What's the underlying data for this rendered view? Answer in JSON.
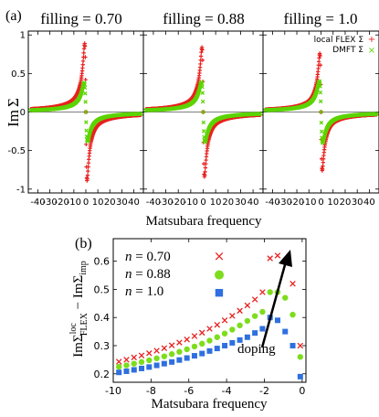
{
  "top": {
    "panel_label": "(a)",
    "titles": [
      "filling = 0.70",
      "filling = 0.88",
      "filling = 1.0"
    ],
    "ylabel_main": "Im",
    "ylabel_sym": "Σ",
    "xlabel": "Matsubara frequency",
    "xticks": [
      "-40",
      "-30",
      "-20",
      "-10",
      "0",
      "10",
      "20",
      "30",
      "40"
    ],
    "yticks": [
      "1",
      "0.5",
      "0",
      "-0.5",
      "-1"
    ],
    "legend": [
      {
        "label": "local FLEX  Σ",
        "marker": "+",
        "color": "#e8211f"
      },
      {
        "label": "DMFT  Σ",
        "marker": "×",
        "color": "#5cd400"
      }
    ]
  },
  "bottom": {
    "panel_label": "(b)",
    "xlabel": "Matsubara frequency",
    "ylabel": {
      "a": "ImΣ",
      "a_sup": "loc",
      "a_sub": "FLEX",
      "mid": " − ImΣ",
      "b_sub": "imp"
    },
    "xticks": [
      "-10",
      "-8",
      "-6",
      "-4",
      "-2",
      "0"
    ],
    "yticks": [
      "0.2",
      "0.3",
      "0.4",
      "0.5",
      "0.6"
    ],
    "legend": [
      {
        "var": "n",
        "eq": " = 0.70",
        "marker": "×",
        "color": "#e8211f"
      },
      {
        "var": "n",
        "eq": " = 0.88",
        "marker": "●",
        "color": "#7ddd1c"
      },
      {
        "var": "n",
        "eq": " = 1.0",
        "marker": "■",
        "color": "#2f6fe0"
      }
    ],
    "annotation": "doping"
  },
  "chart_data": [
    {
      "type": "scatter",
      "title": "filling = 0.70",
      "xlabel": "Matsubara frequency",
      "ylabel": "Im Σ",
      "xlim": [
        -48,
        48
      ],
      "ylim": [
        -1.05,
        1.05
      ],
      "series": [
        {
          "name": "local FLEX Σ",
          "color": "#e8211f",
          "amp": 0.89,
          "peak": 1.0
        },
        {
          "name": "DMFT Σ",
          "color": "#5cd400",
          "amp": 0.38,
          "peak": 1.4
        }
      ]
    },
    {
      "type": "scatter",
      "title": "filling = 0.88",
      "xlabel": "Matsubara frequency",
      "ylabel": "Im Σ",
      "xlim": [
        -48,
        48
      ],
      "ylim": [
        -1.05,
        1.05
      ],
      "series": [
        {
          "name": "local FLEX Σ",
          "color": "#e8211f",
          "amp": 0.84,
          "peak": 1.0
        },
        {
          "name": "DMFT Σ",
          "color": "#5cd400",
          "amp": 0.39,
          "peak": 1.4
        }
      ]
    },
    {
      "type": "scatter",
      "title": "filling = 1.0",
      "xlabel": "Matsubara frequency",
      "ylabel": "Im Σ",
      "xlim": [
        -48,
        48
      ],
      "ylim": [
        -1.05,
        1.05
      ],
      "series": [
        {
          "name": "local FLEX Σ",
          "color": "#e8211f",
          "amp": 0.76,
          "peak": 1.0
        },
        {
          "name": "DMFT Σ",
          "color": "#5cd400",
          "amp": 0.4,
          "peak": 1.4
        }
      ]
    },
    {
      "type": "scatter",
      "xlabel": "Matsubara frequency",
      "ylabel": "ImΣ_FLEX^loc − ImΣ_imp",
      "xlim": [
        -10,
        0.2
      ],
      "ylim": [
        0.17,
        0.68
      ],
      "series": [
        {
          "name": "n = 0.70",
          "color": "#e8211f",
          "x": [
            -9.7,
            -9.3,
            -8.9,
            -8.5,
            -8.1,
            -7.7,
            -7.3,
            -6.9,
            -6.5,
            -6.1,
            -5.7,
            -5.3,
            -4.9,
            -4.5,
            -4.1,
            -3.7,
            -3.3,
            -2.9,
            -2.5,
            -2.1,
            -1.7,
            -1.3,
            -0.9,
            -0.5,
            -0.1
          ],
          "y": [
            0.243,
            0.25,
            0.258,
            0.265,
            0.273,
            0.282,
            0.291,
            0.301,
            0.311,
            0.322,
            0.334,
            0.346,
            0.36,
            0.374,
            0.39,
            0.406,
            0.424,
            0.443,
            0.464,
            0.49,
            0.61,
            0.62,
            0.6,
            0.52,
            0.3
          ]
        },
        {
          "name": "n = 0.88",
          "color": "#7ddd1c",
          "x": [
            -9.7,
            -9.3,
            -8.9,
            -8.5,
            -8.1,
            -7.7,
            -7.3,
            -6.9,
            -6.5,
            -6.1,
            -5.7,
            -5.3,
            -4.9,
            -4.5,
            -4.1,
            -3.7,
            -3.3,
            -2.9,
            -2.5,
            -2.1,
            -1.7,
            -1.3,
            -0.9,
            -0.5,
            -0.1
          ],
          "y": [
            0.225,
            0.23,
            0.236,
            0.242,
            0.248,
            0.255,
            0.262,
            0.27,
            0.278,
            0.287,
            0.297,
            0.307,
            0.318,
            0.33,
            0.343,
            0.357,
            0.372,
            0.388,
            0.405,
            0.42,
            0.49,
            0.49,
            0.47,
            0.41,
            0.26
          ]
        },
        {
          "name": "n = 1.0",
          "color": "#2f6fe0",
          "x": [
            -9.7,
            -9.3,
            -8.9,
            -8.5,
            -8.1,
            -7.7,
            -7.3,
            -6.9,
            -6.5,
            -6.1,
            -5.7,
            -5.3,
            -4.9,
            -4.5,
            -4.1,
            -3.7,
            -3.3,
            -2.9,
            -2.5,
            -2.1,
            -1.7,
            -1.3,
            -0.9,
            -0.5,
            -0.1
          ],
          "y": [
            0.205,
            0.209,
            0.214,
            0.219,
            0.224,
            0.23,
            0.236,
            0.242,
            0.249,
            0.256,
            0.264,
            0.272,
            0.281,
            0.29,
            0.3,
            0.31,
            0.32,
            0.33,
            0.345,
            0.36,
            0.4,
            0.39,
            0.35,
            0.3,
            0.19
          ]
        }
      ]
    }
  ]
}
